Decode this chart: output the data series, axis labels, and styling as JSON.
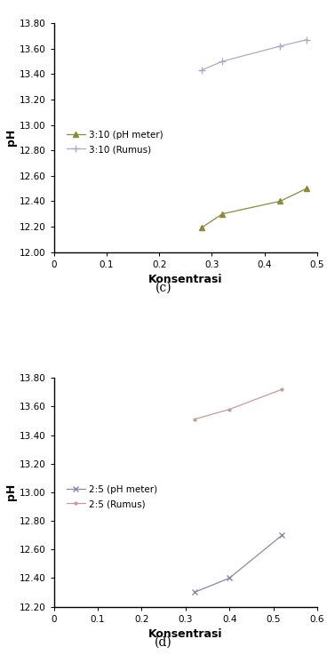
{
  "chart_c": {
    "xlabel": "Konsentrasi",
    "ylabel": "pH",
    "xlim": [
      0,
      0.5
    ],
    "ylim": [
      12.0,
      13.8
    ],
    "xticks": [
      0,
      0.1,
      0.2,
      0.3,
      0.4,
      0.5
    ],
    "yticks": [
      12.0,
      12.2,
      12.4,
      12.6,
      12.8,
      13.0,
      13.2,
      13.4,
      13.6,
      13.8
    ],
    "series": [
      {
        "label": "3:10 (pH meter)",
        "x": [
          0.28,
          0.32,
          0.43,
          0.48
        ],
        "y": [
          12.19,
          12.3,
          12.4,
          12.5
        ],
        "color": "#8b8b3a",
        "marker": "^",
        "linestyle": "-",
        "linewidth": 0.9,
        "markersize": 4
      },
      {
        "label": "3:10 (Rumus)",
        "x": [
          0.28,
          0.32,
          0.43,
          0.48
        ],
        "y": [
          13.43,
          13.5,
          13.62,
          13.67
        ],
        "color": "#aaaacc",
        "marker": "+",
        "linestyle": "-",
        "linewidth": 0.9,
        "markersize": 6
      }
    ]
  },
  "chart_d": {
    "xlabel": "Konsentrasi",
    "ylabel": "pH",
    "xlim": [
      0,
      0.6
    ],
    "ylim": [
      12.2,
      13.8
    ],
    "xticks": [
      0,
      0.1,
      0.2,
      0.3,
      0.4,
      0.5,
      0.6
    ],
    "yticks": [
      12.2,
      12.4,
      12.6,
      12.8,
      13.0,
      13.2,
      13.4,
      13.6,
      13.8
    ],
    "series": [
      {
        "label": "2:5 (pH meter)",
        "x": [
          0.32,
          0.4,
          0.52
        ],
        "y": [
          12.3,
          12.4,
          12.7
        ],
        "color": "#8888aa",
        "marker": "x",
        "linestyle": "-",
        "linewidth": 0.9,
        "markersize": 5
      },
      {
        "label": "2:5 (Rumus)",
        "x": [
          0.32,
          0.4,
          0.52
        ],
        "y": [
          13.51,
          13.58,
          13.72
        ],
        "color": "#cc9999",
        "marker": ".",
        "linestyle": "-",
        "linewidth": 0.9,
        "markersize": 4
      }
    ]
  },
  "label_c": "(c)",
  "label_d": "(d)",
  "background_color": "#ffffff",
  "axis_label_fontsize": 9,
  "tick_fontsize": 7.5,
  "legend_fontsize": 7.5,
  "caption_fontsize": 10
}
